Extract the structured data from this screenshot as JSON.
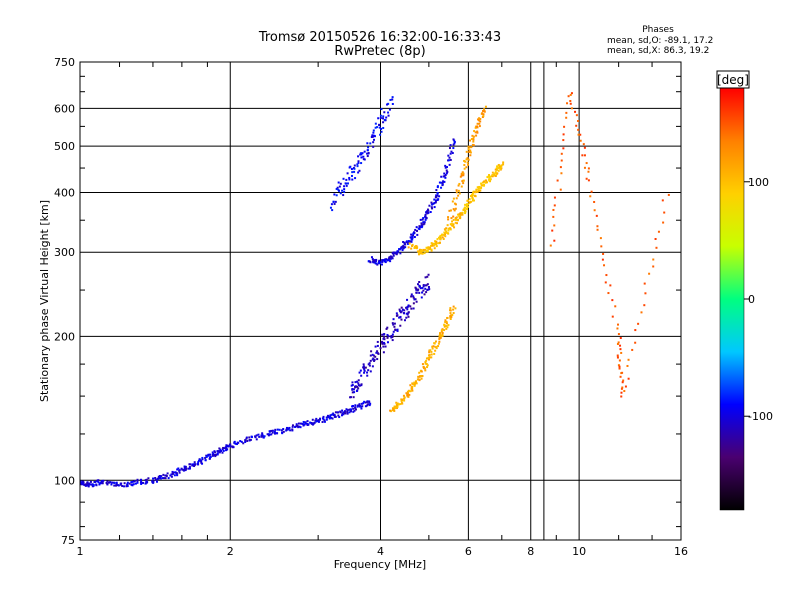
{
  "chart_data": {
    "type": "scatter",
    "title": "Tromsø 20150526 16:32:00-16:33:43",
    "subtitle": "RwPretec (8p)",
    "xlabel": "Frequency [MHz]",
    "ylabel": "Stationary phase Virtual Height [km]",
    "x_scale": "log",
    "y_scale": "log",
    "xlim": [
      1,
      16
    ],
    "ylim": [
      75,
      750
    ],
    "x_ticks": [
      1,
      2,
      4,
      6,
      8,
      10,
      16
    ],
    "x_grid": [
      1,
      2,
      4,
      6,
      8,
      10,
      16,
      8.5
    ],
    "y_ticks": [
      75,
      100,
      200,
      300,
      400,
      500,
      600,
      750
    ],
    "grid": true,
    "legend": {
      "title": "Phases",
      "lines": [
        "mean, sd,O: -89.1, 17.2",
        "mean, sd,X:  86.3, 19.2"
      ]
    },
    "colorbar": {
      "label": "[deg]",
      "ticks": [
        100,
        0,
        -100
      ],
      "range": [
        -180,
        180
      ],
      "colors": [
        "#000000",
        "#4a0070",
        "#0000ff",
        "#00c8ff",
        "#00ff80",
        "#c8ff00",
        "#ffd000",
        "#ff8000",
        "#ff0000"
      ]
    },
    "traces": [
      {
        "name_ref": "O-mode low",
        "phase": -100,
        "x": [
          1.0,
          1.05,
          1.1,
          1.2,
          1.3,
          1.4,
          1.5,
          1.6,
          1.7,
          1.8,
          1.9,
          2.0,
          2.2,
          2.4,
          2.6,
          2.8,
          3.0,
          3.2,
          3.4,
          3.6,
          3.8
        ],
        "y": [
          99,
          98,
          99,
          98,
          99,
          100,
          102,
          105,
          108,
          112,
          115,
          118,
          122,
          125,
          128,
          131,
          133,
          136,
          139,
          142,
          146
        ]
      },
      {
        "name_ref": "O-mode E spread",
        "phase": -110,
        "x": [
          3.5,
          3.6,
          3.8,
          4.0,
          4.2,
          4.4,
          4.6,
          4.8,
          5.0
        ],
        "y": [
          150,
          160,
          175,
          190,
          205,
          220,
          235,
          250,
          260
        ]
      },
      {
        "name_ref": "O-mode F",
        "phase": -100,
        "x": [
          3.8,
          4.0,
          4.2,
          4.4,
          4.6,
          4.8,
          5.0,
          5.2,
          5.4,
          5.6
        ],
        "y": [
          290,
          285,
          292,
          305,
          320,
          340,
          365,
          395,
          440,
          520
        ]
      },
      {
        "name_ref": "O-mode spread F",
        "phase": -95,
        "x": [
          3.2,
          3.4,
          3.6,
          3.8,
          4.0,
          4.2
        ],
        "y": [
          380,
          420,
          460,
          500,
          560,
          620
        ]
      },
      {
        "name_ref": "X-mode E",
        "phase": 110,
        "x": [
          4.2,
          4.4,
          4.6,
          4.8,
          5.0,
          5.2,
          5.4,
          5.6
        ],
        "y": [
          140,
          145,
          155,
          165,
          180,
          195,
          210,
          230
        ]
      },
      {
        "name_ref": "X-mode F",
        "phase": 100,
        "x": [
          4.6,
          4.8,
          5.0,
          5.2,
          5.4,
          5.6,
          5.8,
          6.0,
          6.2,
          6.5,
          6.8,
          7.0
        ],
        "y": [
          310,
          300,
          305,
          315,
          330,
          345,
          360,
          380,
          400,
          420,
          440,
          460
        ]
      },
      {
        "name_ref": "X-mode upper",
        "phase": 120,
        "x": [
          5.5,
          5.8,
          6.0,
          6.2,
          6.5
        ],
        "y": [
          350,
          420,
          480,
          540,
          600
        ]
      },
      {
        "name_ref": "Scattered high",
        "phase": 150,
        "x": [
          8.8,
          9.6,
          10.5,
          12.0,
          12.2,
          15.0
        ],
        "y": [
          310,
          650,
          420,
          200,
          150,
          400
        ]
      }
    ],
    "annotations": []
  }
}
